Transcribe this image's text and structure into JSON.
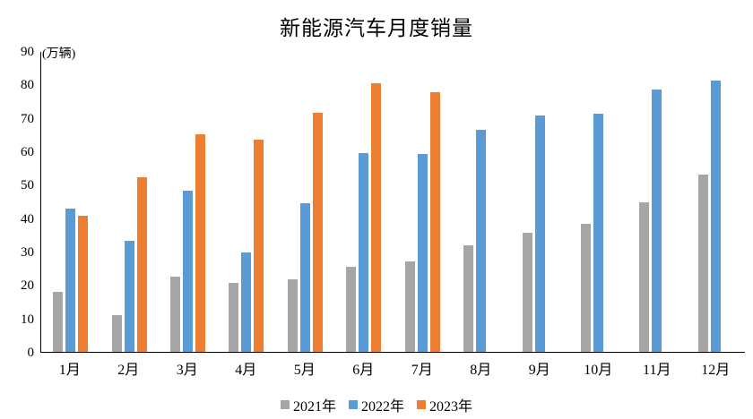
{
  "chart_data": {
    "type": "bar",
    "title": "新能源汽车月度销量",
    "unit_label": "(万辆)",
    "categories": [
      "1月",
      "2月",
      "3月",
      "4月",
      "5月",
      "6月",
      "7月",
      "8月",
      "9月",
      "10月",
      "11月",
      "12月"
    ],
    "series": [
      {
        "name": "2021年",
        "color": "#A6A6A6",
        "values": [
          17.9,
          11.0,
          22.6,
          20.6,
          21.7,
          25.6,
          27.1,
          32.1,
          35.7,
          38.3,
          45.0,
          53.1
        ]
      },
      {
        "name": "2022年",
        "color": "#5B9BD5",
        "values": [
          43.1,
          33.4,
          48.4,
          29.9,
          44.7,
          59.6,
          59.3,
          66.6,
          70.8,
          71.4,
          78.6,
          81.4
        ]
      },
      {
        "name": "2023年",
        "color": "#ED7D31",
        "values": [
          40.8,
          52.5,
          65.3,
          63.6,
          71.7,
          80.6,
          78.0,
          null,
          null,
          null,
          null,
          null
        ]
      }
    ],
    "ylim": [
      0,
      90
    ],
    "yticks": [
      0,
      10,
      20,
      30,
      40,
      50,
      60,
      70,
      80,
      90
    ],
    "grid": false,
    "legend_position": "bottom",
    "axis_color": "#000000",
    "background_color": "#FFFFFF"
  }
}
